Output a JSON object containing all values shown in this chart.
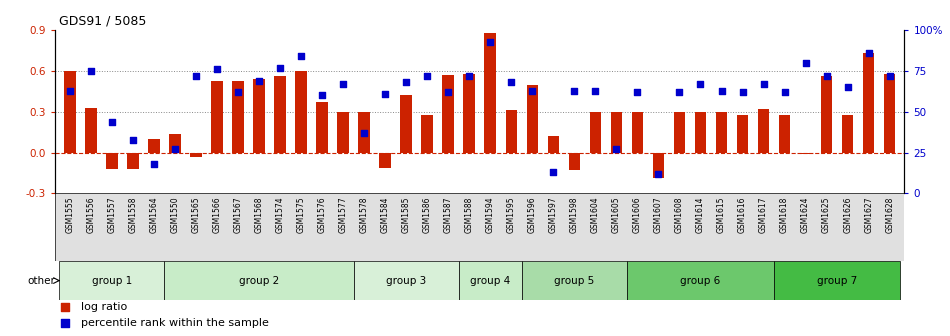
{
  "title": "GDS91 / 5085",
  "samples": [
    "GSM1555",
    "GSM1556",
    "GSM1557",
    "GSM1558",
    "GSM1564",
    "GSM1550",
    "GSM1565",
    "GSM1566",
    "GSM1567",
    "GSM1568",
    "GSM1574",
    "GSM1575",
    "GSM1576",
    "GSM1577",
    "GSM1578",
    "GSM1584",
    "GSM1585",
    "GSM1586",
    "GSM1587",
    "GSM1588",
    "GSM1594",
    "GSM1595",
    "GSM1596",
    "GSM1597",
    "GSM1598",
    "GSM1604",
    "GSM1605",
    "GSM1606",
    "GSM1607",
    "GSM1608",
    "GSM1614",
    "GSM1615",
    "GSM1616",
    "GSM1617",
    "GSM1618",
    "GSM1624",
    "GSM1625",
    "GSM1626",
    "GSM1627",
    "GSM1628"
  ],
  "log_ratio": [
    0.6,
    0.33,
    -0.12,
    -0.12,
    0.1,
    0.14,
    -0.03,
    0.53,
    0.53,
    0.54,
    0.56,
    0.6,
    0.37,
    0.3,
    0.3,
    -0.11,
    0.42,
    0.28,
    0.57,
    0.58,
    0.88,
    0.31,
    0.5,
    0.12,
    -0.13,
    0.3,
    0.3,
    0.3,
    -0.19,
    0.3,
    0.3,
    0.3,
    0.28,
    0.32,
    0.28,
    -0.01,
    0.56,
    0.28,
    0.73,
    0.58
  ],
  "percentile": [
    63,
    75,
    44,
    33,
    18,
    27,
    72,
    76,
    62,
    69,
    77,
    84,
    60,
    67,
    37,
    61,
    68,
    72,
    62,
    72,
    93,
    68,
    63,
    13,
    63,
    63,
    27,
    62,
    12,
    62,
    67,
    63,
    62,
    67,
    62,
    80,
    72,
    65,
    86,
    72
  ],
  "groups": [
    {
      "name": "group 1",
      "start": 0,
      "end": 4
    },
    {
      "name": "group 2",
      "start": 5,
      "end": 13
    },
    {
      "name": "group 3",
      "start": 14,
      "end": 18
    },
    {
      "name": "group 4",
      "start": 19,
      "end": 21
    },
    {
      "name": "group 5",
      "start": 22,
      "end": 26
    },
    {
      "name": "group 6",
      "start": 27,
      "end": 33
    },
    {
      "name": "group 7",
      "start": 34,
      "end": 39
    }
  ],
  "group_colors": [
    "#d8f0d8",
    "#c8ecc8",
    "#d8f0d8",
    "#c8ecc8",
    "#a8dca8",
    "#6cc86c",
    "#44bb44"
  ],
  "yticks_left": [
    -0.3,
    0.0,
    0.3,
    0.6,
    0.9
  ],
  "yticks_right": [
    0,
    25,
    50,
    75,
    100
  ],
  "ytick_right_labels": [
    "0",
    "25",
    "50",
    "75",
    "100%"
  ],
  "ylim_left": [
    -0.3,
    0.9
  ],
  "bar_color": "#cc2200",
  "dot_color": "#0000cc",
  "hline0_color": "#cc2200",
  "dotted_color": "#888888",
  "bg_color": "#ffffff"
}
